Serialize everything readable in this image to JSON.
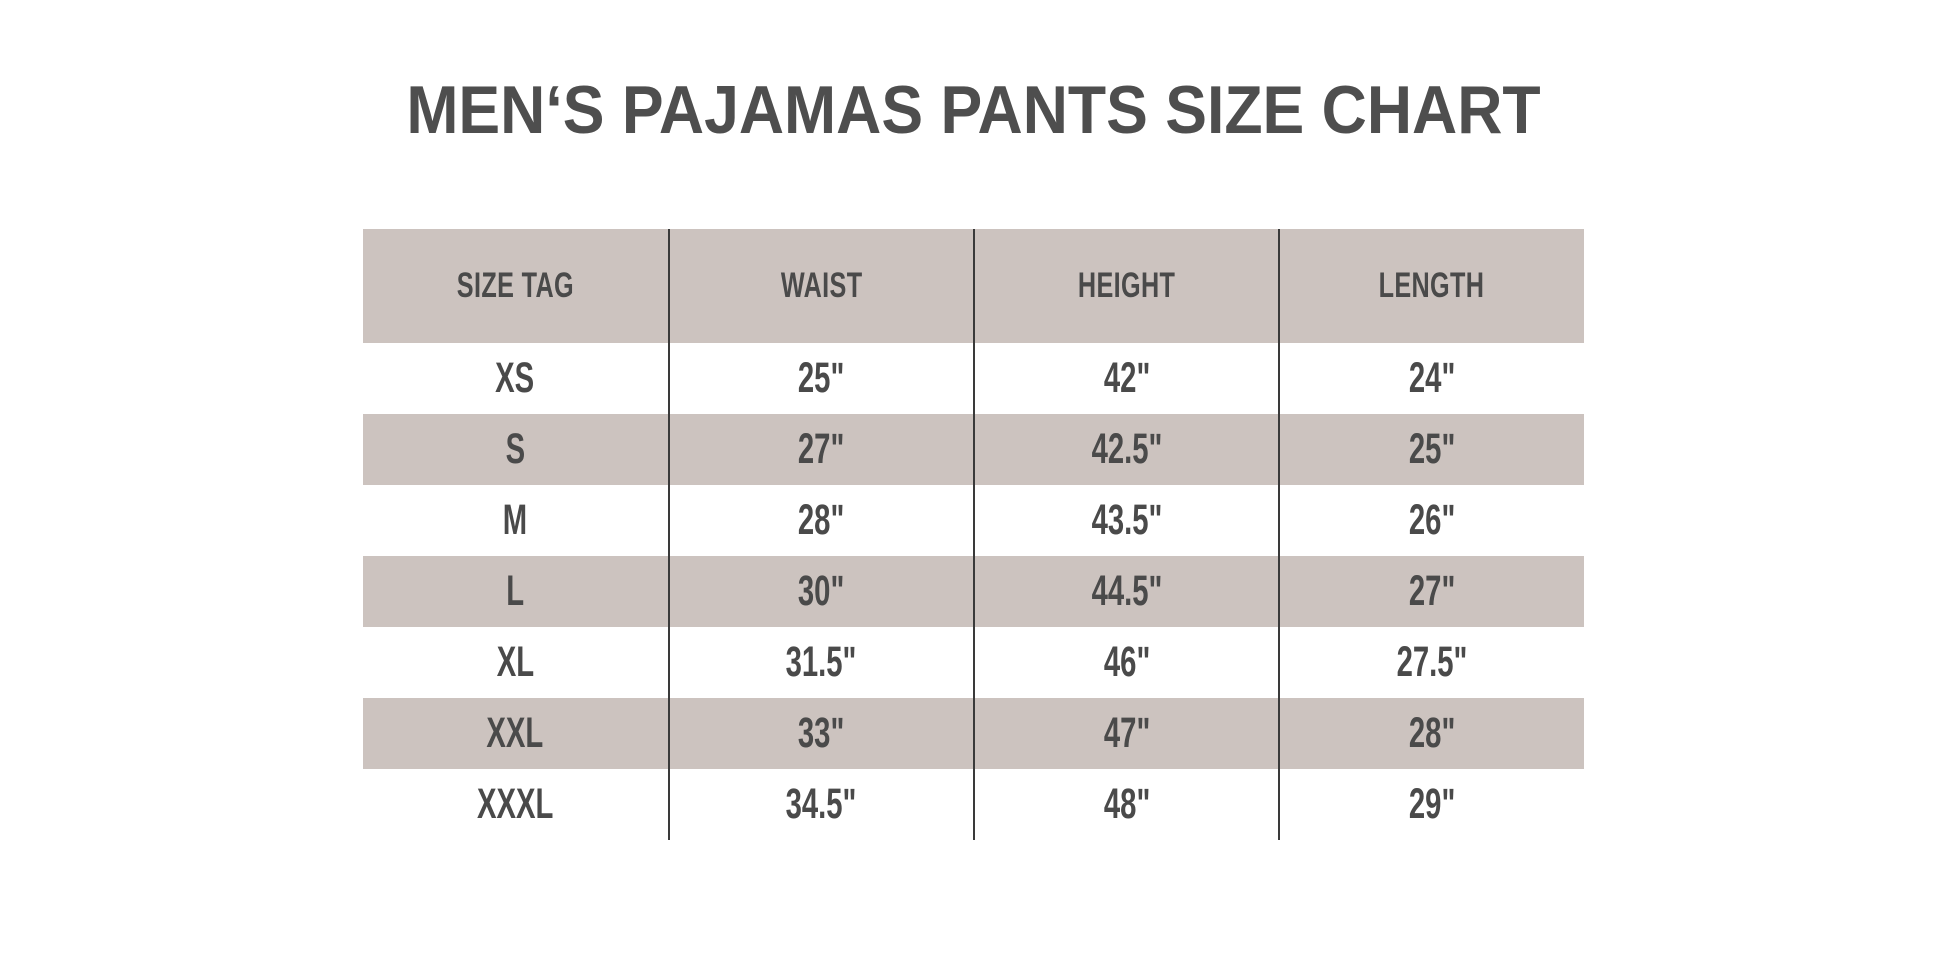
{
  "title": {
    "text": "MEN‘S PAJAMAS PANTS SIZE CHART",
    "color": "#4e4e4e"
  },
  "colors": {
    "stripe_bg": "#ccc3bf",
    "row_bg": "#ffffff",
    "divider": "#3a3a3a",
    "text": "#4a4a4a"
  },
  "table": {
    "header": {
      "columns": [
        "SIZE TAG",
        "WAIST",
        "HEIGHT",
        "LENGTH"
      ]
    },
    "rows": [
      {
        "size": "XS",
        "waist": "25\"",
        "height": "42\"",
        "length": "24\""
      },
      {
        "size": "S",
        "waist": "27\"",
        "height": "42.5\"",
        "length": "25\""
      },
      {
        "size": "M",
        "waist": "28\"",
        "height": "43.5\"",
        "length": "26\""
      },
      {
        "size": "L",
        "waist": "30\"",
        "height": "44.5\"",
        "length": "27\""
      },
      {
        "size": "XL",
        "waist": "31.5\"",
        "height": "46\"",
        "length": "27.5\""
      },
      {
        "size": "XXL",
        "waist": "33\"",
        "height": "47\"",
        "length": "28\""
      },
      {
        "size": "XXXL",
        "waist": "34.5\"",
        "height": "48\"",
        "length": "29\""
      }
    ]
  },
  "chart_data": {
    "type": "table",
    "title": "MEN‘S PAJAMAS PANTS SIZE CHART",
    "columns": [
      "SIZE TAG",
      "WAIST",
      "HEIGHT",
      "LENGTH"
    ],
    "rows": [
      [
        "XS",
        "25\"",
        "42\"",
        "24\""
      ],
      [
        "S",
        "27\"",
        "42.5\"",
        "25\""
      ],
      [
        "M",
        "28\"",
        "43.5\"",
        "26\""
      ],
      [
        "L",
        "30\"",
        "44.5\"",
        "27\""
      ],
      [
        "XL",
        "31.5\"",
        "46\"",
        "27.5\""
      ],
      [
        "XXL",
        "33\"",
        "47\"",
        "28\""
      ],
      [
        "XXXL",
        "34.5\"",
        "48\"",
        "29\""
      ]
    ],
    "layout": {
      "striped_rows": [
        "header",
        "S",
        "L",
        "XXL"
      ],
      "column_dividers": true,
      "horizontal_borders": false
    }
  }
}
